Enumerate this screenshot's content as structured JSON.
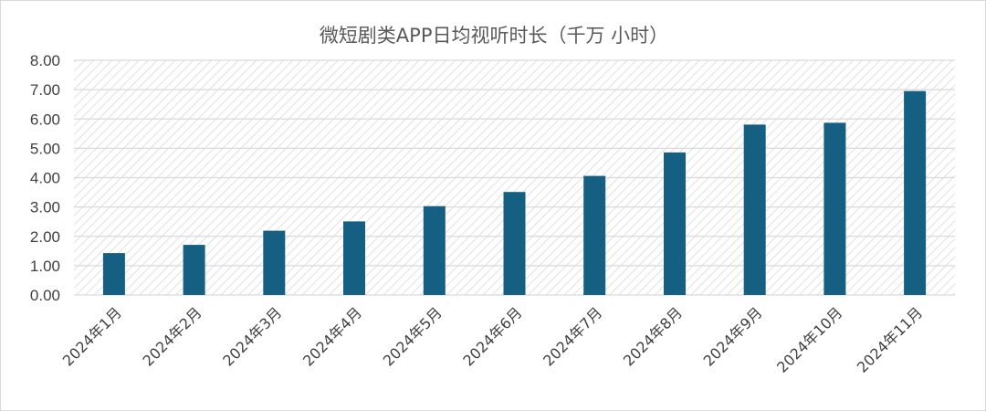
{
  "chart_data": {
    "type": "bar",
    "title": "微短剧类APP日均视听时长（千万 小时）",
    "categories": [
      "2024年1月",
      "2024年2月",
      "2024年3月",
      "2024年4月",
      "2024年5月",
      "2024年6月",
      "2024年7月",
      "2024年8月",
      "2024年9月",
      "2024年10月",
      "2024年11月"
    ],
    "values": [
      1.43,
      1.71,
      2.19,
      2.51,
      3.03,
      3.51,
      4.06,
      4.86,
      5.81,
      5.87,
      6.95
    ],
    "ylim": [
      0,
      8
    ],
    "yticks": [
      "0.00",
      "1.00",
      "2.00",
      "3.00",
      "4.00",
      "5.00",
      "6.00",
      "7.00",
      "8.00"
    ],
    "grid": true,
    "legend": "none",
    "colors": {
      "bar": "#155f82",
      "grid": "#d9d9d9",
      "hatch": "#d9d9d9"
    }
  }
}
